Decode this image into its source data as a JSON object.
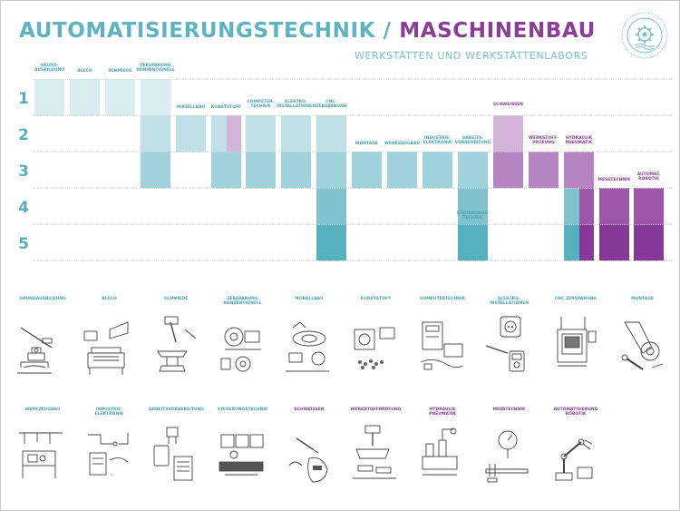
{
  "header": {
    "title_part1": "AUTOMATISIERUNGSTECHNIK / ",
    "title_part2": "MASCHINENBAU",
    "subtitle": "WERKSTÄTTEN UND WERKSTÄTTENLABORS",
    "logo_icon": "gear-seal-icon"
  },
  "rows": [
    "1",
    "2",
    "3",
    "4",
    "5"
  ],
  "colors": {
    "teal_1": "#daedf1",
    "teal_2": "#bfe0e6",
    "teal_3": "#9fd2da",
    "teal_4": "#80c3ce",
    "teal_5": "#56b1bf",
    "purple_2": "#d5b4da",
    "purple_3": "#b684c0",
    "purple_4": "#9c57a8",
    "purple_5": "#853896",
    "title_teal": "#5fb3c1",
    "title_purple": "#8a3f96"
  },
  "timeline": [
    {
      "label": "GRUND-\nAUSBILDUNG",
      "accent": "teal",
      "rows": [
        1
      ]
    },
    {
      "label": "BLECH",
      "accent": "teal",
      "rows": [
        1
      ]
    },
    {
      "label": "SCHMIEDE",
      "accent": "teal",
      "rows": [
        1
      ]
    },
    {
      "label": "ZERSPANUNG\nKONVENTIONELL",
      "accent": "teal",
      "rows": [
        1,
        2,
        3
      ]
    },
    {
      "label": "MODELLBAU",
      "accent": "teal",
      "rows": [
        2
      ]
    },
    {
      "label": "KUNSTSTOFF",
      "accent": "teal",
      "rows": [
        2,
        3
      ],
      "purple_part": [
        2
      ]
    },
    {
      "label": "COMPUTER-\nTECHNIK",
      "accent": "teal",
      "rows": [
        2,
        3
      ]
    },
    {
      "label": "ELEKTRO-\nINSTALLATIONEN",
      "accent": "teal",
      "rows": [
        2,
        3
      ]
    },
    {
      "label": "CNC-\nZERSPANUNG",
      "accent": "teal",
      "rows": [
        2,
        3,
        4,
        5
      ]
    },
    {
      "label": "MONTAGE",
      "accent": "teal",
      "rows": [
        3
      ]
    },
    {
      "label": "WERKZEUGBAU",
      "accent": "teal",
      "rows": [
        3
      ]
    },
    {
      "label": "INDUSTRIE-\nELEKTRONIK",
      "accent": "teal",
      "rows": [
        3
      ]
    },
    {
      "label": "ARBEITS-\nVORBEREITUNG",
      "accent": "teal",
      "rows": [
        3,
        4,
        5
      ]
    },
    {
      "label": "SCHWEISSEN",
      "accent": "purple",
      "rows": [
        2,
        3
      ]
    },
    {
      "label": "WERKSTOFF-\nPRÜFUNG",
      "accent": "purple",
      "rows": [
        3
      ]
    },
    {
      "label": "HYDRAULIK\nPNEUMATIK",
      "accent": "purple",
      "rows": [
        3,
        4,
        5
      ],
      "teal_part": [
        4,
        5
      ]
    },
    {
      "label": "MESSTECHNIK",
      "accent": "purple",
      "rows": [
        4,
        5
      ]
    },
    {
      "label": "AUTOMAT.\nROBOTIK",
      "accent": "purple",
      "rows": [
        4,
        5
      ]
    },
    {
      "label": "STEUERUNGS-\nTECHNIK",
      "accent": "teal",
      "rows": [
        5
      ]
    }
  ],
  "illustrations_row1": [
    {
      "label": "GRUNDAUSBILDUNG",
      "accent": "teal",
      "icon": "vise-hacksaw-icon"
    },
    {
      "label": "BLECH",
      "accent": "teal",
      "icon": "sheet-metal-bender-icon"
    },
    {
      "label": "SCHMIEDE",
      "accent": "teal",
      "icon": "anvil-hammer-icon"
    },
    {
      "label": "ZERSPANUNG\nKONVENTIONELL",
      "accent": "teal",
      "icon": "lathe-chuck-icon"
    },
    {
      "label": "MODELLBAU",
      "accent": "teal",
      "icon": "model-parts-icon"
    },
    {
      "label": "KUNSTSTOFF",
      "accent": "teal",
      "icon": "plastic-molding-icon"
    },
    {
      "label": "COMPUTERTECHNIK",
      "accent": "teal",
      "icon": "computer-board-icon"
    },
    {
      "label": "ELEKTRO-\nINSTALLATIONEN",
      "accent": "teal",
      "icon": "socket-multimeter-icon"
    },
    {
      "label": "CNC ZERSPANUNG",
      "accent": "teal",
      "icon": "cnc-machine-icon"
    },
    {
      "label": "MONTAGE",
      "accent": "teal",
      "icon": "wrench-assembly-icon"
    }
  ],
  "illustrations_row2": [
    {
      "label": "WERKZEUGBAU",
      "accent": "teal",
      "icon": "tool-workshop-icon"
    },
    {
      "label": "INDUSTRIE-\nELEKTRONIK",
      "accent": "teal",
      "icon": "circuit-schematic-icon"
    },
    {
      "label": "ARBEITSVORBEREITUNG",
      "accent": "teal",
      "icon": "planning-clipboard-icon"
    },
    {
      "label": "STEUERUNGSTECHNIK",
      "accent": "teal",
      "icon": "plc-control-icon"
    },
    {
      "label": "SCHWEISSEN",
      "accent": "purple",
      "icon": "welding-mask-icon"
    },
    {
      "label": "WERKSTOFFPRÜFUNG",
      "accent": "purple",
      "icon": "material-testing-icon"
    },
    {
      "label": "HYDRAULIK\nPNEUMATIK",
      "accent": "purple",
      "icon": "hydraulic-valves-icon"
    },
    {
      "label": "MESSTECHNIK",
      "accent": "purple",
      "icon": "caliper-gauge-icon"
    },
    {
      "label": "AUTOMATISIERUNG\nROBOTIK",
      "accent": "purple",
      "icon": "robot-arm-icon"
    }
  ]
}
